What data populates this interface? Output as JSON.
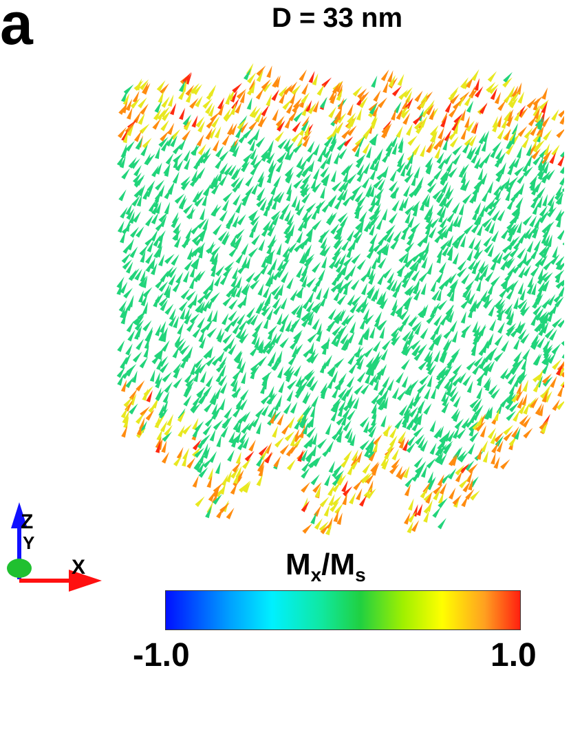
{
  "panel_label": "a",
  "title": "D = 33 nm",
  "colorbar": {
    "label_main": "M",
    "label_sub1": "x",
    "label_slash": "/M",
    "label_sub2": "s",
    "min_label": "-1.0",
    "max_label": "1.0",
    "colors": [
      "#0010ff",
      "#00f0ff",
      "#20d040",
      "#ffff00",
      "#ff2010"
    ]
  },
  "axes_triad": {
    "z_label": "Z",
    "y_label": "Y",
    "x_label": "X",
    "z_color": "#1010ff",
    "y_color": "#20c030",
    "x_color": "#ff1010"
  },
  "arrow_colors": {
    "bulk": "#21d47a",
    "edge_yellow": "#e8e820",
    "edge_orange": "#ff8c10",
    "edge_red": "#ff2a10"
  }
}
